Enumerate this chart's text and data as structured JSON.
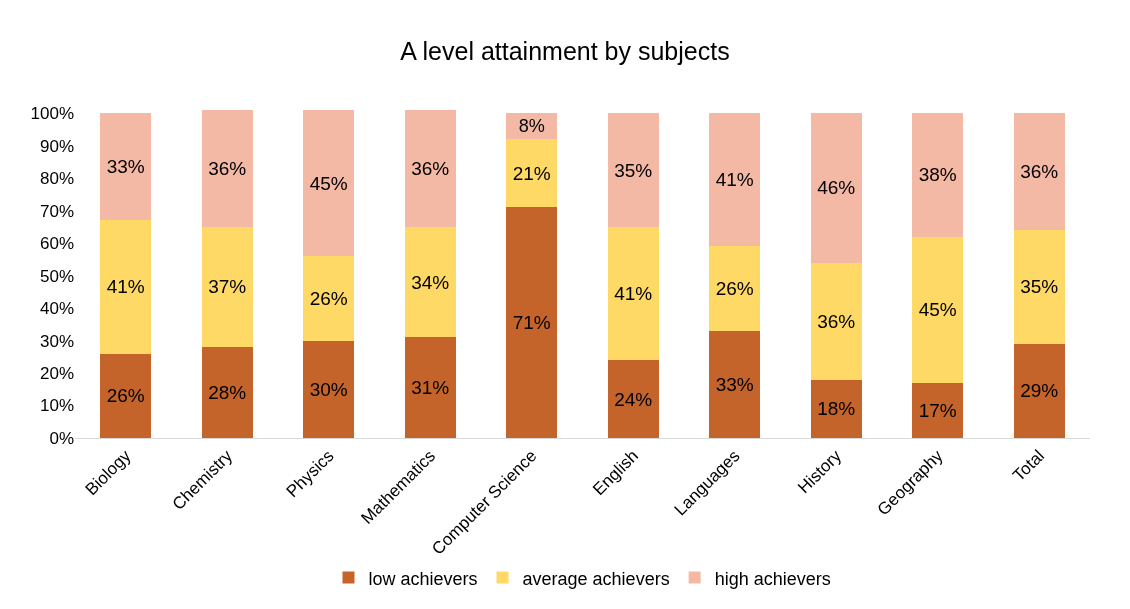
{
  "chart_data": {
    "type": "bar",
    "title": "A level attainment by subjects",
    "stacked": true,
    "categories": [
      "Biology",
      "Chemistry",
      "Physics",
      "Mathematics",
      "Computer Science",
      "English",
      "Languages",
      "History",
      "Geography",
      "Total"
    ],
    "series": [
      {
        "name": "low achievers",
        "color": "#c5642a",
        "values": [
          26,
          28,
          30,
          31,
          71,
          24,
          33,
          18,
          17,
          29
        ],
        "value_labels": [
          "26%",
          "28%",
          "30%",
          "31%",
          "71%",
          "24%",
          "33%",
          "18%",
          "17%",
          "29%"
        ]
      },
      {
        "name": "average achievers",
        "color": "#ffd966",
        "values": [
          41,
          37,
          26,
          34,
          21,
          41,
          26,
          36,
          45,
          35
        ],
        "value_labels": [
          "41%",
          "37%",
          "26%",
          "34%",
          "21%",
          "41%",
          "26%",
          "36%",
          "45%",
          "35%"
        ]
      },
      {
        "name": "high achievers",
        "color": "#f4b9a5",
        "values": [
          33,
          36,
          45,
          36,
          8,
          35,
          41,
          46,
          38,
          36
        ],
        "value_labels": [
          "33%",
          "36%",
          "45%",
          "36%",
          "8%",
          "35%",
          "41%",
          "46%",
          "38%",
          "36%"
        ]
      }
    ],
    "ylim": [
      0,
      101
    ],
    "yticks": [
      {
        "value": 0,
        "label": "0%"
      },
      {
        "value": 10,
        "label": "10%"
      },
      {
        "value": 20,
        "label": "20%"
      },
      {
        "value": 30,
        "label": "30%"
      },
      {
        "value": 40,
        "label": "40%"
      },
      {
        "value": 50,
        "label": "50%"
      },
      {
        "value": 60,
        "label": "60%"
      },
      {
        "value": 70,
        "label": "70%"
      },
      {
        "value": 80,
        "label": "80%"
      },
      {
        "value": 90,
        "label": "90%"
      },
      {
        "value": 100,
        "label": "100%"
      }
    ],
    "legend": "bottom"
  }
}
